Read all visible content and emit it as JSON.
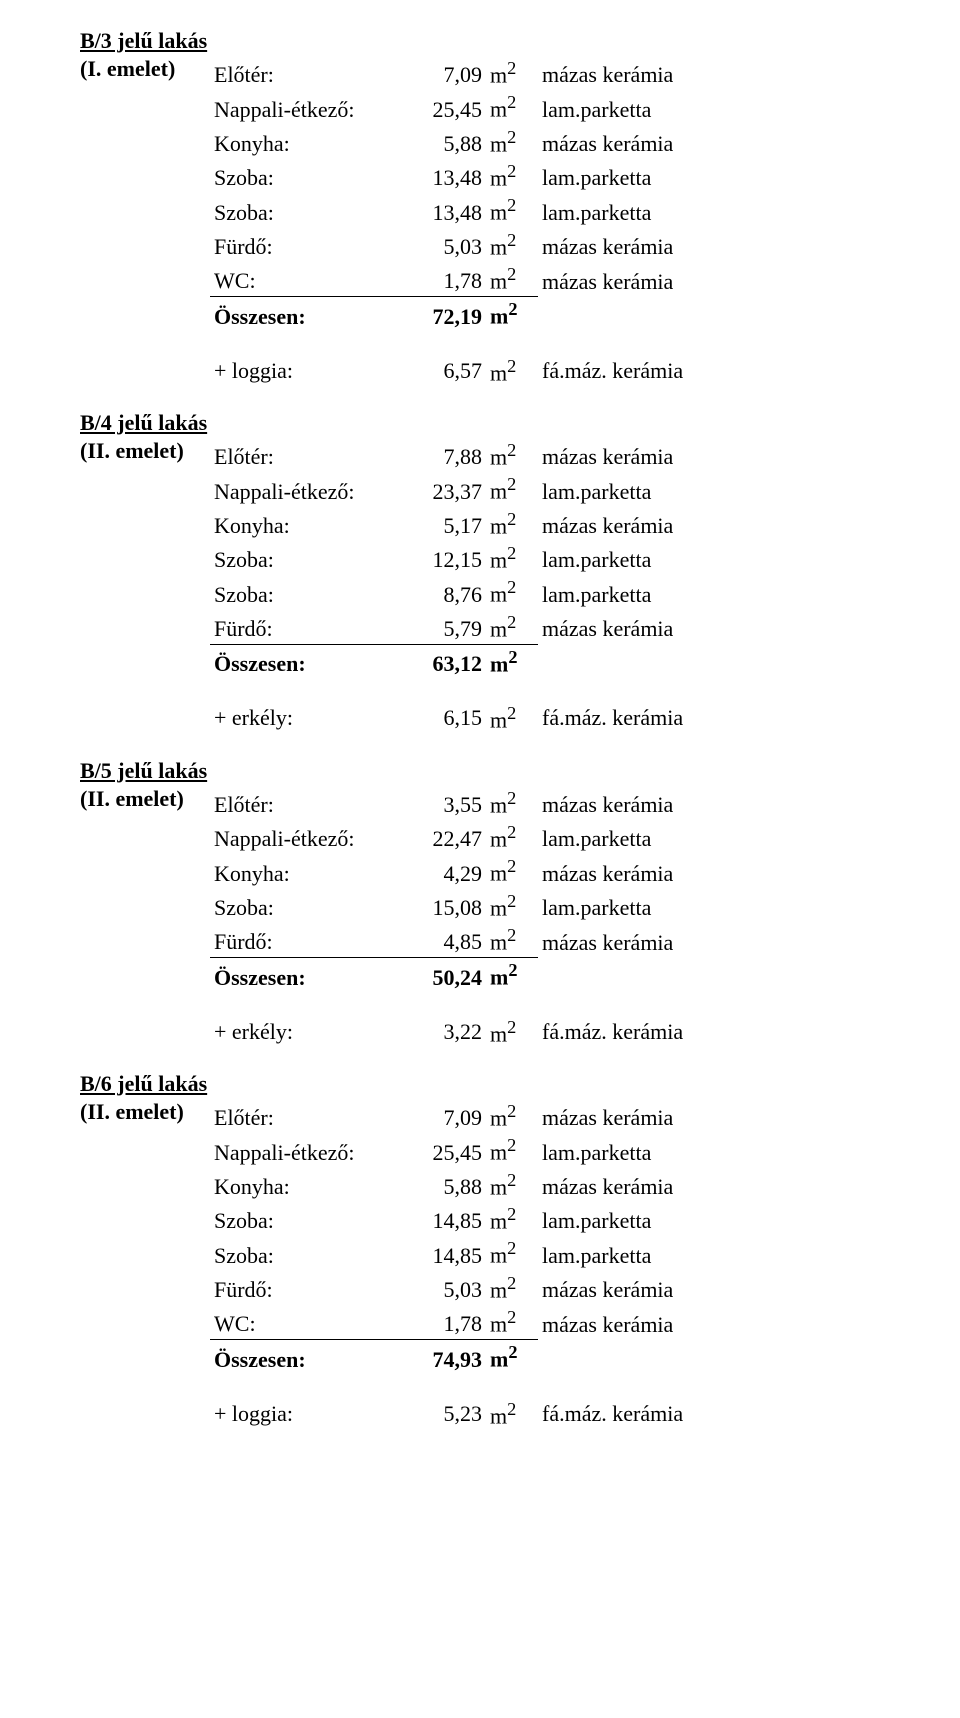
{
  "font_family": "Times New Roman",
  "colors": {
    "text": "#000000",
    "background": "#ffffff",
    "rule": "#000000"
  },
  "unit": "m",
  "sup": "2",
  "apartments": [
    {
      "title": "B/3 jelű lakás",
      "floor": "(I. emelet)",
      "rooms": [
        {
          "label": "Előtér:",
          "val": "7,09",
          "mat": "mázas kerámia"
        },
        {
          "label": "Nappali-étkező:",
          "val": "25,45",
          "mat": "lam.parketta"
        },
        {
          "label": "Konyha:",
          "val": "5,88",
          "mat": "mázas kerámia"
        },
        {
          "label": "Szoba:",
          "val": "13,48",
          "mat": "lam.parketta"
        },
        {
          "label": "Szoba:",
          "val": "13,48",
          "mat": "lam.parketta"
        },
        {
          "label": "Fürdő:",
          "val": "5,03",
          "mat": "mázas kerámia"
        },
        {
          "label": "WC:",
          "val": "1,78",
          "mat": "mázas kerámia"
        }
      ],
      "sum": {
        "label": "Összesen:",
        "val": "72,19"
      },
      "extra": {
        "label": "+ loggia:",
        "val": "6,57",
        "mat": "fá.máz. kerámia"
      }
    },
    {
      "title": "B/4 jelű lakás",
      "floor": "(II. emelet)",
      "rooms": [
        {
          "label": "Előtér:",
          "val": "7,88",
          "mat": "mázas kerámia"
        },
        {
          "label": "Nappali-étkező:",
          "val": "23,37",
          "mat": "lam.parketta"
        },
        {
          "label": "Konyha:",
          "val": "5,17",
          "mat": "mázas kerámia"
        },
        {
          "label": "Szoba:",
          "val": "12,15",
          "mat": "lam.parketta"
        },
        {
          "label": "Szoba:",
          "val": "8,76",
          "mat": "lam.parketta"
        },
        {
          "label": "Fürdő:",
          "val": "5,79",
          "mat": "mázas kerámia"
        }
      ],
      "sum": {
        "label": "Összesen:",
        "val": "63,12"
      },
      "extra": {
        "label": "+ erkély:",
        "val": "6,15",
        "mat": "fá.máz. kerámia"
      }
    },
    {
      "title": "B/5 jelű lakás",
      "floor": "(II. emelet)",
      "rooms": [
        {
          "label": "Előtér:",
          "val": "3,55",
          "mat": "mázas kerámia"
        },
        {
          "label": "Nappali-étkező:",
          "val": "22,47",
          "mat": "lam.parketta"
        },
        {
          "label": "Konyha:",
          "val": "4,29",
          "mat": "mázas kerámia"
        },
        {
          "label": "Szoba:",
          "val": "15,08",
          "mat": "lam.parketta"
        },
        {
          "label": "Fürdő:",
          "val": "4,85",
          "mat": "mázas kerámia"
        }
      ],
      "sum": {
        "label": "Összesen:",
        "val": "50,24"
      },
      "extra": {
        "label": "+ erkély:",
        "val": "3,22",
        "mat": "fá.máz. kerámia"
      }
    },
    {
      "title": "B/6 jelű lakás",
      "floor": "(II. emelet)",
      "rooms": [
        {
          "label": "Előtér:",
          "val": "7,09",
          "mat": "mázas kerámia"
        },
        {
          "label": "Nappali-étkező:",
          "val": "25,45",
          "mat": "lam.parketta"
        },
        {
          "label": "Konyha:",
          "val": "5,88",
          "mat": "mázas kerámia"
        },
        {
          "label": "Szoba:",
          "val": "14,85",
          "mat": "lam.parketta"
        },
        {
          "label": "Szoba:",
          "val": "14,85",
          "mat": "lam.parketta"
        },
        {
          "label": "Fürdő:",
          "val": "5,03",
          "mat": "mázas kerámia"
        },
        {
          "label": "WC:",
          "val": "1,78",
          "mat": "mázas kerámia"
        }
      ],
      "sum": {
        "label": "Összesen:",
        "val": "74,93"
      },
      "extra": {
        "label": "+ loggia:",
        "val": "5,23",
        "mat": "fá.máz. kerámia"
      }
    }
  ]
}
